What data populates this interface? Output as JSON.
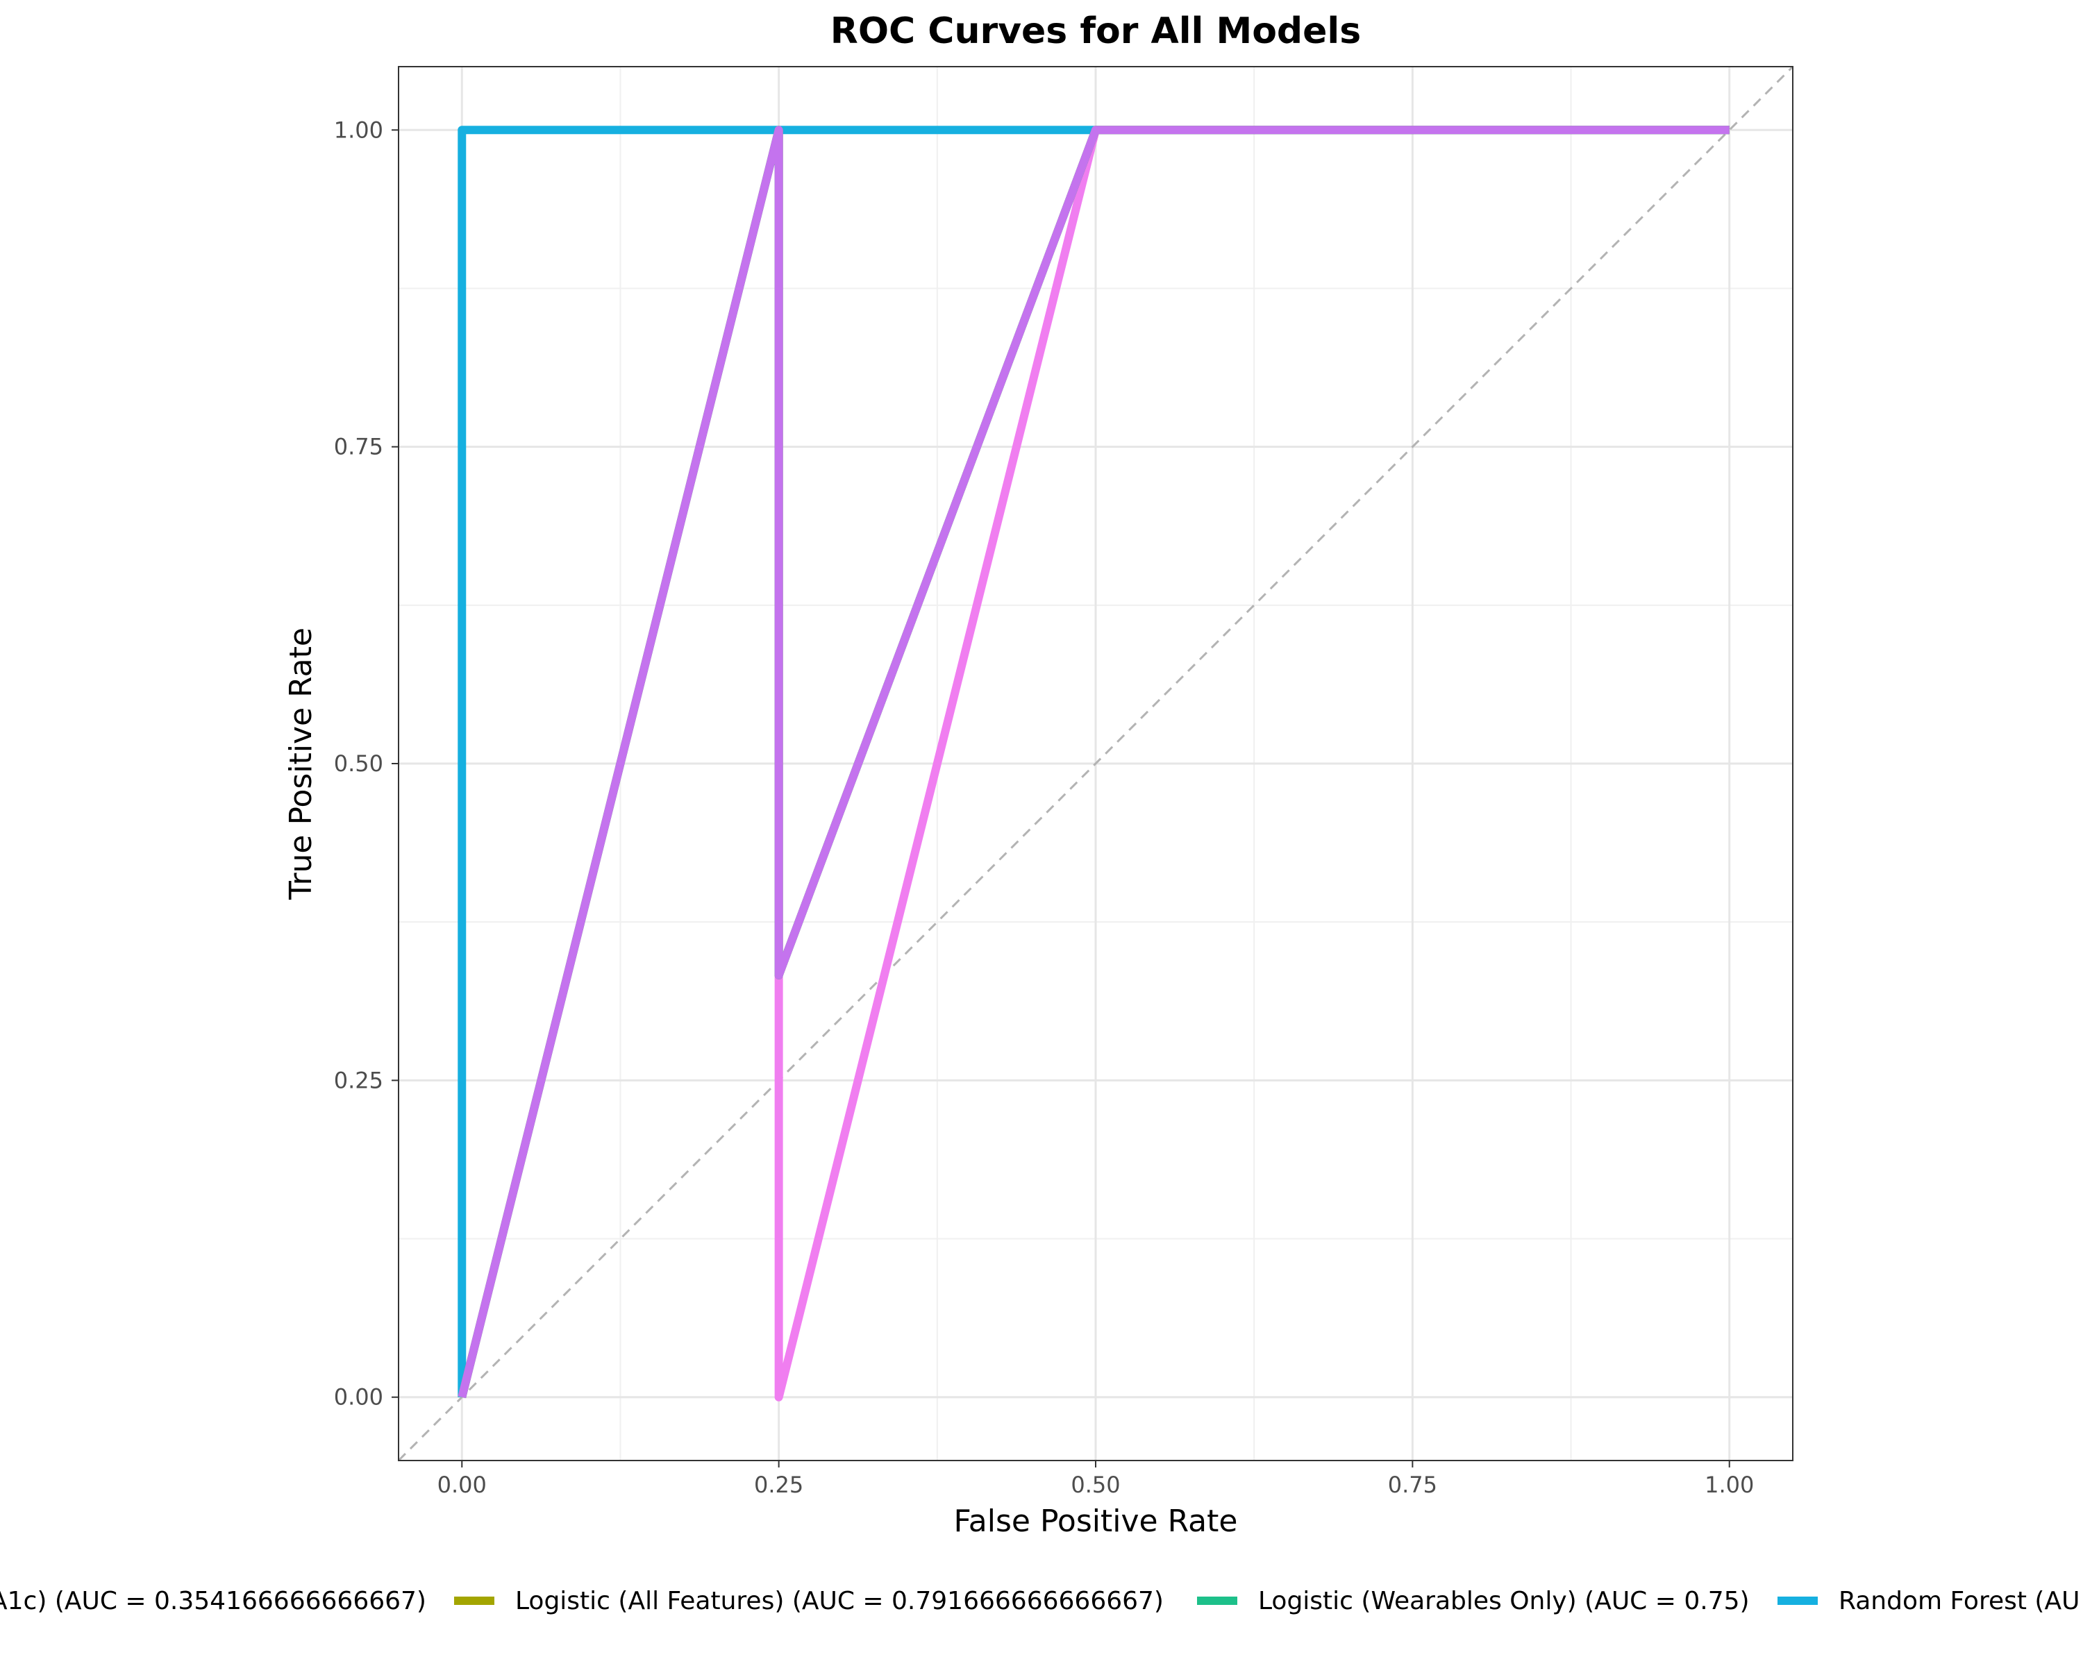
{
  "chart_data": {
    "type": "line",
    "title": "ROC Curves for All Models",
    "xlabel": "False Positive Rate",
    "ylabel": "True Positive Rate",
    "xlim": [
      -0.05,
      1.05
    ],
    "ylim": [
      -0.05,
      1.05
    ],
    "x_ticks": [
      "0.00",
      "0.25",
      "0.50",
      "0.75",
      "1.00"
    ],
    "y_ticks": [
      "0.00",
      "0.25",
      "0.50",
      "0.75",
      "1.00"
    ],
    "grid": true,
    "legend_position": "bottom",
    "reference_line": {
      "x": [
        0,
        1
      ],
      "y": [
        0,
        1
      ],
      "style": "dashed",
      "color": "#b3b3b3"
    },
    "series": [
      {
        "name": "A1c) (AUC = 0.354166666666667)",
        "color": "#f07ef0",
        "x": [
          0,
          0.25,
          0.25,
          0.5,
          1.0
        ],
        "y": [
          0,
          1.0,
          0.0,
          1.0,
          1.0
        ]
      },
      {
        "name": "Logistic (All Features) (AUC = 0.791666666666667)",
        "color": "#a3a500",
        "x": [
          0,
          0.25,
          0.25,
          0.5,
          1.0
        ],
        "y": [
          0,
          1.0,
          0.333,
          1.0,
          1.0
        ]
      },
      {
        "name": "Logistic (Wearables Only) (AUC = 0.75)",
        "color": "#1dc08a",
        "x": [
          0,
          0.25,
          0.25,
          0.5,
          1.0
        ],
        "y": [
          0,
          1.0,
          0.333,
          1.0,
          1.0
        ]
      },
      {
        "name": "Random Forest (AU",
        "color": "#16b0e0",
        "x": [
          0,
          0,
          0.25,
          0.5
        ],
        "y": [
          0,
          1.0,
          1.0,
          1.0
        ]
      },
      {
        "name": "",
        "color": "#c473ee",
        "x": [
          0,
          0.25,
          0.25,
          0.5,
          1.0
        ],
        "y": [
          0,
          1.0,
          0.333,
          1.0,
          1.0
        ],
        "in_legend": false
      }
    ],
    "legend_visible": [
      {
        "name": "A1c) (AUC = 0.354166666666667)",
        "color": "#f07ef0",
        "has_key": false
      },
      {
        "name": "Logistic (All Features) (AUC = 0.791666666666667)",
        "color": "#a3a500",
        "has_key": true
      },
      {
        "name": "Logistic (Wearables Only) (AUC = 0.75)",
        "color": "#1dc08a",
        "has_key": true
      },
      {
        "name": "Random Forest (AU",
        "color": "#16b0e0",
        "has_key": true
      }
    ]
  }
}
